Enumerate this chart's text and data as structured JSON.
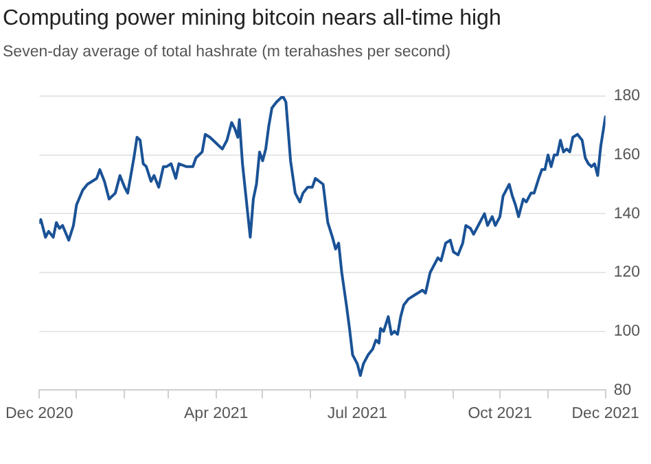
{
  "chart_data": {
    "type": "line",
    "title": "Computing power mining bitcoin nears all-time high",
    "subtitle": "Seven-day average of total hashrate (m terahashes per second)",
    "x": [
      "2020-12-08",
      "2020-12-09",
      "2020-12-12",
      "2020-12-14",
      "2020-12-17",
      "2020-12-19",
      "2020-12-21",
      "2020-12-23",
      "2020-12-27",
      "2020-12-30",
      "2021-01-01",
      "2021-01-05",
      "2021-01-08",
      "2021-01-11",
      "2021-01-14",
      "2021-01-16",
      "2021-01-19",
      "2021-01-22",
      "2021-01-26",
      "2021-01-29",
      "2021-02-01",
      "2021-02-03",
      "2021-02-07",
      "2021-02-09",
      "2021-02-11",
      "2021-02-13",
      "2021-02-15",
      "2021-02-18",
      "2021-02-20",
      "2021-02-23",
      "2021-02-26",
      "2021-02-28",
      "2021-03-03",
      "2021-03-06",
      "2021-03-08",
      "2021-03-13",
      "2021-03-17",
      "2021-03-19",
      "2021-03-23",
      "2021-03-25",
      "2021-03-28",
      "2021-04-01",
      "2021-04-05",
      "2021-04-08",
      "2021-04-11",
      "2021-04-13",
      "2021-04-15",
      "2021-04-16",
      "2021-04-18",
      "2021-04-20",
      "2021-04-23",
      "2021-04-25",
      "2021-04-27",
      "2021-04-29",
      "2021-05-01",
      "2021-05-03",
      "2021-05-05",
      "2021-05-07",
      "2021-05-10",
      "2021-05-14",
      "2021-05-16",
      "2021-05-19",
      "2021-05-22",
      "2021-05-25",
      "2021-05-27",
      "2021-05-30",
      "2021-06-02",
      "2021-06-04",
      "2021-06-09",
      "2021-06-12",
      "2021-06-15",
      "2021-06-17",
      "2021-06-19",
      "2021-06-21",
      "2021-06-24",
      "2021-06-26",
      "2021-06-28",
      "2021-07-01",
      "2021-07-03",
      "2021-07-05",
      "2021-07-08",
      "2021-07-11",
      "2021-07-13",
      "2021-07-15",
      "2021-07-16",
      "2021-07-18",
      "2021-07-21",
      "2021-07-23",
      "2021-07-25",
      "2021-07-27",
      "2021-07-29",
      "2021-07-31",
      "2021-08-03",
      "2021-08-06",
      "2021-08-09",
      "2021-08-12",
      "2021-08-14",
      "2021-08-17",
      "2021-08-19",
      "2021-08-22",
      "2021-08-24",
      "2021-08-27",
      "2021-08-30",
      "2021-09-01",
      "2021-09-04",
      "2021-09-07",
      "2021-09-09",
      "2021-09-12",
      "2021-09-14",
      "2021-09-17",
      "2021-09-21",
      "2021-09-23",
      "2021-09-26",
      "2021-09-28",
      "2021-10-01",
      "2021-10-03",
      "2021-10-07",
      "2021-10-09",
      "2021-10-11",
      "2021-10-13",
      "2021-10-16",
      "2021-10-18",
      "2021-10-21",
      "2021-10-23",
      "2021-10-26",
      "2021-10-28",
      "2021-10-30",
      "2021-11-01",
      "2021-11-03",
      "2021-11-05",
      "2021-11-07",
      "2021-11-09",
      "2021-11-11",
      "2021-11-13",
      "2021-11-15",
      "2021-11-17",
      "2021-11-20",
      "2021-11-23",
      "2021-11-25",
      "2021-11-27",
      "2021-11-29",
      "2021-12-01",
      "2021-12-03",
      "2021-12-05",
      "2021-12-08"
    ],
    "series": [
      {
        "color": "#1a5296",
        "values": [
          137,
          138,
          132,
          134,
          132,
          137,
          135,
          136,
          131,
          136,
          143,
          148,
          150,
          151,
          152,
          155,
          151,
          145,
          147,
          153,
          149,
          147,
          159,
          166,
          165,
          157,
          156,
          151,
          153,
          149,
          156,
          156,
          157,
          152,
          157,
          156,
          156,
          159,
          161,
          167,
          166,
          164,
          162,
          165,
          171,
          169,
          166,
          172,
          157,
          147,
          132,
          145,
          150,
          161,
          158,
          162,
          170,
          176,
          178,
          180,
          178,
          158,
          147,
          144,
          147,
          149,
          149,
          152,
          150,
          137,
          132,
          128,
          130,
          120,
          109,
          101,
          92,
          89,
          85,
          89,
          92,
          94,
          97,
          96,
          101,
          100,
          105,
          99,
          100,
          99,
          105,
          109,
          111,
          112,
          113,
          114,
          113,
          120,
          122,
          125,
          124,
          130,
          131,
          127,
          126,
          130,
          136,
          135,
          133,
          136,
          140,
          136,
          139,
          136,
          139,
          146,
          150,
          146,
          143,
          139,
          145,
          144,
          147,
          147,
          152,
          155,
          155,
          160,
          156,
          160,
          160,
          165,
          161,
          162,
          161,
          166,
          167,
          165,
          159,
          157,
          156,
          157,
          153,
          163,
          173
        ]
      }
    ],
    "xlim": [
      "2020-12-08",
      "2021-12-08"
    ],
    "xticks": [
      {
        "value": "2020-12-08",
        "label": "Dec 2020"
      },
      {
        "value": "2021-01-01",
        "label": null
      },
      {
        "value": "2021-02-01",
        "label": null
      },
      {
        "value": "2021-03-01",
        "label": null
      },
      {
        "value": "2021-04-01",
        "label": "Apr 2021"
      },
      {
        "value": "2021-05-01",
        "label": null
      },
      {
        "value": "2021-06-01",
        "label": null
      },
      {
        "value": "2021-07-01",
        "label": "Jul 2021"
      },
      {
        "value": "2021-08-01",
        "label": null
      },
      {
        "value": "2021-09-01",
        "label": null
      },
      {
        "value": "2021-10-01",
        "label": "Oct 2021"
      },
      {
        "value": "2021-11-01",
        "label": null
      },
      {
        "value": "2021-12-08",
        "label": "Dec 2021"
      }
    ],
    "ylim": [
      80,
      180
    ],
    "yticks": [
      80,
      100,
      120,
      140,
      160,
      180
    ],
    "grid": "y",
    "legend": false,
    "marker": "none",
    "line_style": "solid"
  }
}
